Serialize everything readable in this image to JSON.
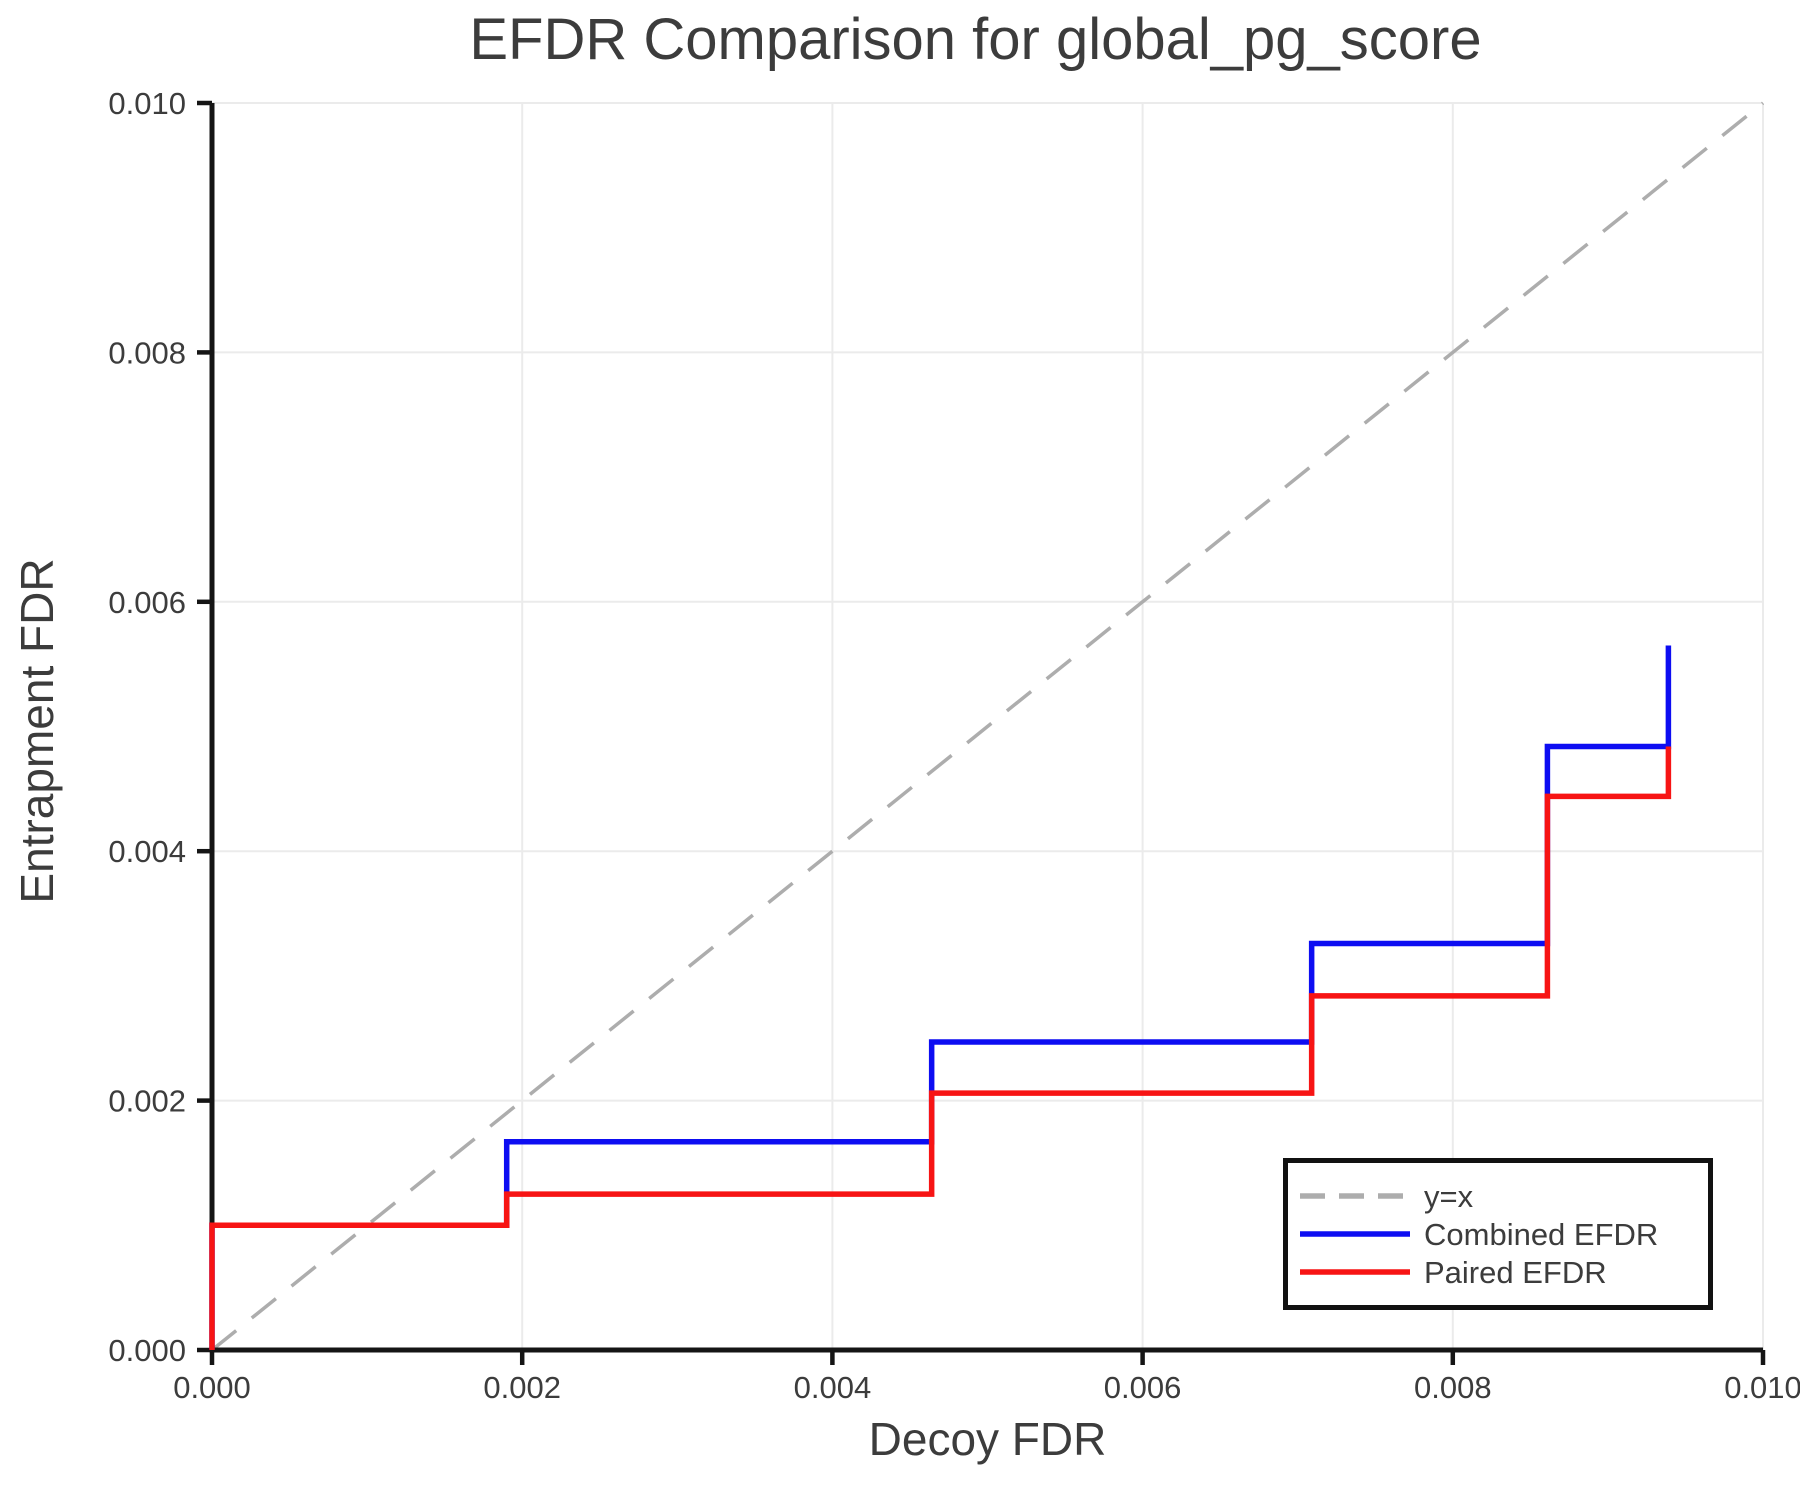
{
  "chart_data": {
    "type": "line",
    "subtype": "step",
    "title": "EFDR Comparison for global_pg_score",
    "xlabel": "Decoy FDR",
    "ylabel": "Entrapment FDR",
    "xlim": [
      0.0,
      0.01
    ],
    "ylim": [
      0.0,
      0.01
    ],
    "xticks": [
      0.0,
      0.002,
      0.004,
      0.006,
      0.008,
      0.01
    ],
    "yticks": [
      0.0,
      0.002,
      0.004,
      0.006,
      0.008,
      0.01
    ],
    "xtick_labels": [
      "0.000",
      "0.002",
      "0.004",
      "0.006",
      "0.008",
      "0.010"
    ],
    "ytick_labels": [
      "0.000",
      "0.002",
      "0.004",
      "0.006",
      "0.008",
      "0.010"
    ],
    "grid": true,
    "grid_color": "#ebebeb",
    "axis_color": "#151515",
    "text_color": "#3c3c3c",
    "reference_line": {
      "label": "y=x",
      "style": "dashed",
      "color": "#adadad",
      "from": [
        0.0,
        0.0
      ],
      "to": [
        0.01,
        0.01
      ]
    },
    "series": [
      {
        "name": "Combined EFDR",
        "color": "#0d0df2",
        "x": [
          0.0,
          0.0,
          0.0019,
          0.0019,
          0.00464,
          0.00464,
          0.00709,
          0.00709,
          0.00861,
          0.00861,
          0.00939,
          0.00939
        ],
        "y": [
          0.0,
          0.001,
          0.001,
          0.00167,
          0.00167,
          0.00247,
          0.00247,
          0.00326,
          0.00326,
          0.00484,
          0.00484,
          0.00565
        ]
      },
      {
        "name": "Paired EFDR",
        "color": "#f71414",
        "x": [
          0.0,
          0.0,
          0.0019,
          0.0019,
          0.00464,
          0.00464,
          0.00709,
          0.00709,
          0.00861,
          0.00861,
          0.00939,
          0.00939
        ],
        "y": [
          0.0,
          0.001,
          0.001,
          0.00125,
          0.00125,
          0.00206,
          0.00206,
          0.00284,
          0.00284,
          0.00444,
          0.00444,
          0.00484
        ]
      }
    ],
    "legend": {
      "position": "lower right",
      "entries": [
        "y=x",
        "Combined EFDR",
        "Paired EFDR"
      ]
    }
  }
}
